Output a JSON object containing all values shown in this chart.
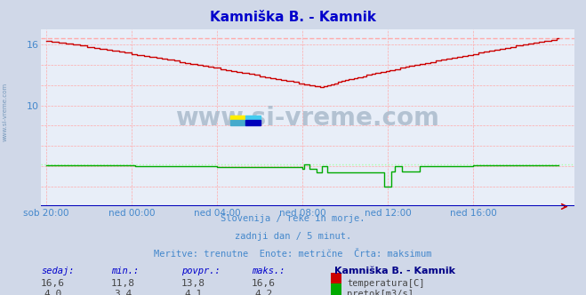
{
  "title": "Kamniška B. - Kamnik",
  "title_color": "#0000cc",
  "bg_color": "#d0d8e8",
  "plot_bg_color": "#e8eef8",
  "grid_color": "#ffaaaa",
  "tick_color": "#4488cc",
  "xlabels": [
    "sob 20:00",
    "ned 00:00",
    "ned 04:00",
    "ned 08:00",
    "ned 12:00",
    "ned 16:00"
  ],
  "xtick_positions": [
    0,
    48,
    96,
    144,
    192,
    240
  ],
  "ylim": [
    7.5,
    17.5
  ],
  "yticks": [
    10,
    16
  ],
  "temp_color": "#cc0000",
  "flow_color": "#00aa00",
  "max_line_color": "#ffaaaa",
  "max_flow_line_color": "#aaffaa",
  "max_temp": 16.6,
  "max_flow": 4.2,
  "avg_temp": 13.8,
  "avg_flow": 4.1,
  "min_temp": 11.8,
  "min_flow": 3.4,
  "cur_temp": 16.6,
  "cur_flow": 4.0,
  "watermark": "www.si-vreme.com",
  "watermark_color": "#aabbcc",
  "side_text": "www.si-vreme.com",
  "side_text_color": "#7799bb",
  "subtitle1": "Slovenija / reke in morje.",
  "subtitle2": "zadnji dan / 5 minut.",
  "subtitle3": "Meritve: trenutne  Enote: metrične  Črta: maksimum",
  "subtitle_color": "#4488cc",
  "legend_title": "Kamniška B. - Kamnik",
  "legend_title_color": "#000088",
  "header_labels": [
    "sedaj:",
    "min.:",
    "povpr.:",
    "maks.:"
  ],
  "header_color": "#0000cc",
  "val_color": "#444444",
  "n_points": 289,
  "flow_scale": 4.2,
  "flow_base": 7.5,
  "flow_range": 10.0
}
